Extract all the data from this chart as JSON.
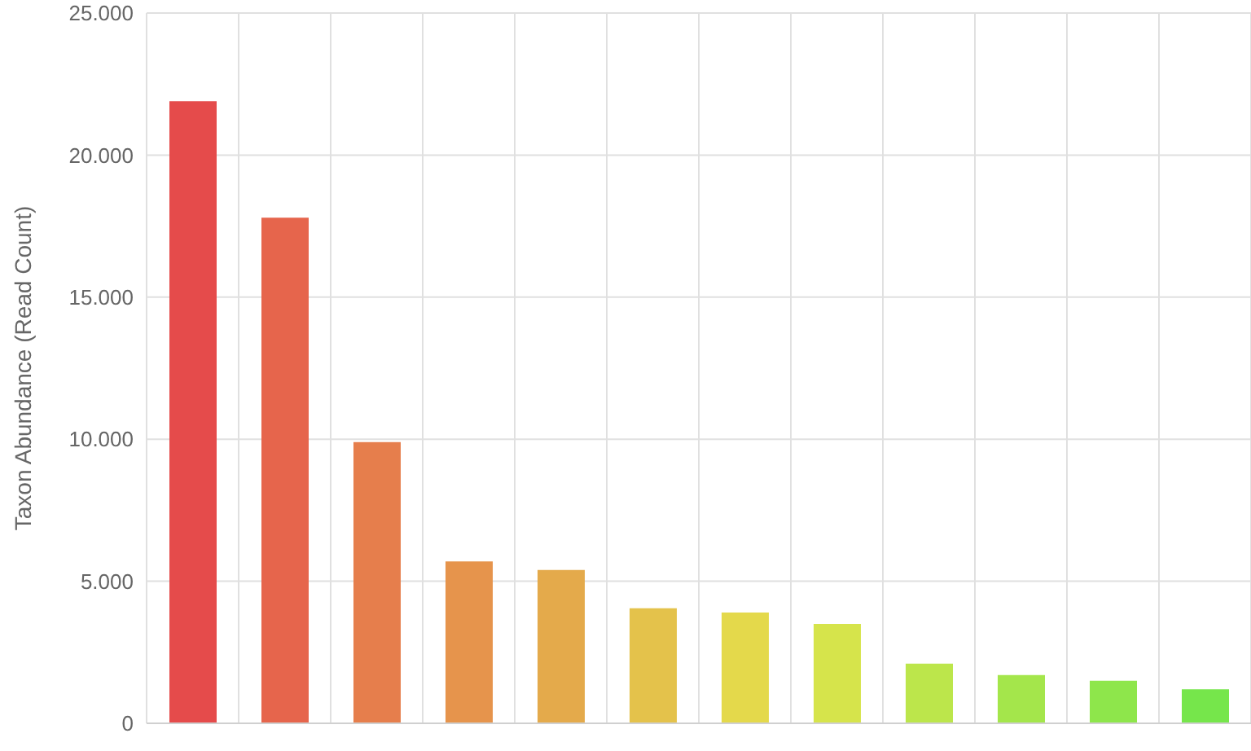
{
  "chart_data": {
    "type": "bar",
    "ylabel": "Taxon Abundance (Read Count)",
    "categories": [
      null,
      null,
      null,
      null,
      null,
      null,
      null,
      null,
      null,
      null,
      null,
      null
    ],
    "values": [
      21900,
      17800,
      9900,
      5700,
      5400,
      4050,
      3900,
      3500,
      2100,
      1700,
      1500,
      1200
    ],
    "colors": [
      "#e54b4b",
      "#e6654c",
      "#e67e4c",
      "#e6944c",
      "#e4aa4b",
      "#e4c24b",
      "#e4d94b",
      "#d6e44b",
      "#bce64b",
      "#a4e64b",
      "#8ee64b",
      "#76e64b"
    ],
    "ylim": [
      0,
      25000
    ],
    "yticks": [
      {
        "value": 0,
        "label": "0"
      },
      {
        "value": 5000,
        "label": "5.000"
      },
      {
        "value": 10000,
        "label": "10.000"
      },
      {
        "value": 15000,
        "label": "15.000"
      },
      {
        "value": 20000,
        "label": "20.000"
      },
      {
        "value": 25000,
        "label": "25.000"
      }
    ],
    "grid": true
  }
}
